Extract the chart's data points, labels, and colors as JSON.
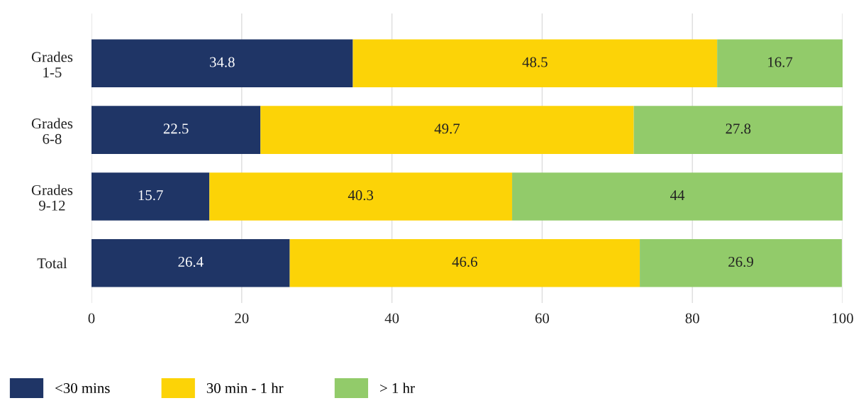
{
  "chart_data": {
    "type": "bar",
    "orientation": "horizontal",
    "stacked": true,
    "categories": [
      "Grades\n1-5",
      "Grades\n6-8",
      "Grades\n9-12",
      "Total"
    ],
    "series": [
      {
        "name": "<30 mins",
        "color": "#1f3566",
        "values": [
          34.8,
          22.5,
          15.7,
          26.4
        ]
      },
      {
        "name": "30 min - 1 hr",
        "color": "#fcd307",
        "values": [
          48.5,
          49.7,
          40.3,
          46.6
        ]
      },
      {
        "name": "> 1 hr",
        "color": "#92cb6a",
        "values": [
          16.7,
          27.8,
          44,
          26.9
        ]
      }
    ],
    "xlim": [
      0,
      100
    ],
    "xticks": [
      0,
      20,
      40,
      60,
      80,
      100
    ],
    "grid": "x",
    "legend": "bottom",
    "data_labels": true
  }
}
